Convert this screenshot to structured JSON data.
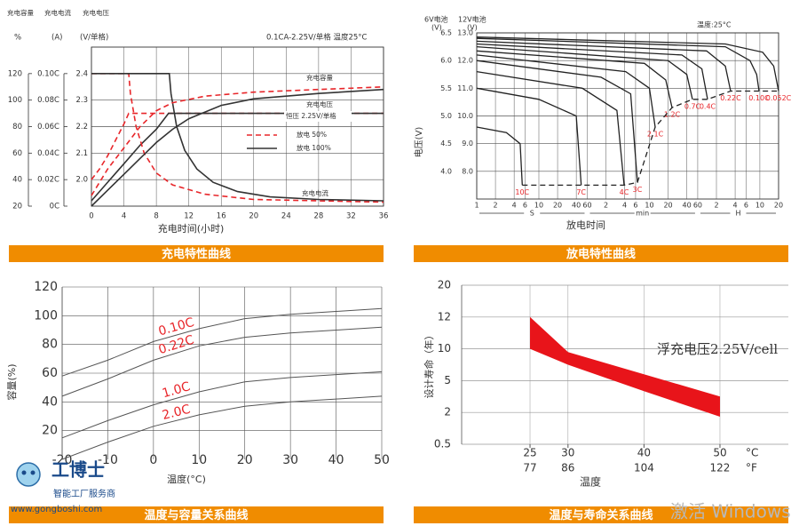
{
  "chart_data": [
    {
      "type": "line",
      "title": "充电特性曲线",
      "header_labels": [
        "充电容量",
        "充电电流",
        "充电电压"
      ],
      "note": "0.1CA-2.25V/单格  温度25°C",
      "xlabel": "充电时间(小时)",
      "ylabel": "(V/单格)",
      "y2label": "%",
      "y3label": "(A)",
      "xlim": [
        0,
        36
      ],
      "xticks": [
        0,
        4,
        8,
        12,
        16,
        20,
        24,
        28,
        32,
        36
      ],
      "ylim": [
        1.9,
        2.5
      ],
      "yticks": [
        {
          "value": 2,
          "label": "2.0"
        },
        2.1,
        2.2,
        2.3,
        2.4
      ],
      "y2lim": [
        20,
        140
      ],
      "y2ticks": [
        20,
        40,
        60,
        80,
        100,
        120
      ],
      "y3lim": [
        0,
        0.12
      ],
      "y3ticks": [
        {
          "value": 0,
          "label": "0C"
        },
        {
          "value": 0.02,
          "label": "0.02C"
        },
        {
          "value": 0.04,
          "label": "0.04C"
        },
        {
          "value": 0.06,
          "label": "0.06C"
        },
        {
          "value": 0.08,
          "label": "0.08C"
        },
        {
          "value": 0.1,
          "label": "0.10C"
        }
      ],
      "grid": true,
      "legend": [
        {
          "name": "放电 50%",
          "color": "#e8262a",
          "dash": true
        },
        {
          "name": "放电 100%",
          "color": "#333333",
          "dash": false
        }
      ],
      "curve_labels": [
        "充电容量",
        "充电电压",
        "恒压 2.25V/单格",
        "充电电流"
      ],
      "series": [
        {
          "axis": "y",
          "style": 0,
          "x": [
            0,
            1,
            2,
            3,
            4,
            4.6,
            36
          ],
          "values": [
            2.0,
            2.04,
            2.09,
            2.15,
            2.21,
            2.25,
            2.25
          ]
        },
        {
          "axis": "y",
          "style": 1,
          "x": [
            0,
            2,
            4,
            6,
            8,
            9.5,
            36
          ],
          "values": [
            1.92,
            1.99,
            2.06,
            2.13,
            2.19,
            2.25,
            2.25
          ]
        },
        {
          "axis": "y3",
          "style": 0,
          "x": [
            0,
            4.6,
            4.8,
            5.5,
            6.5,
            8,
            10,
            14,
            20,
            36
          ],
          "values": [
            0.1,
            0.1,
            0.085,
            0.06,
            0.04,
            0.025,
            0.016,
            0.009,
            0.005,
            0.003
          ]
        },
        {
          "axis": "y3",
          "style": 1,
          "x": [
            0,
            9.6,
            9.8,
            10.5,
            11.5,
            13,
            15,
            18,
            22,
            28,
            36
          ],
          "values": [
            0.1,
            0.1,
            0.085,
            0.06,
            0.042,
            0.028,
            0.018,
            0.011,
            0.007,
            0.005,
            0.004
          ]
        },
        {
          "axis": "y2",
          "style": 0,
          "x": [
            0,
            2,
            4,
            6,
            8,
            10,
            14,
            20,
            28,
            36
          ],
          "values": [
            28,
            48,
            64,
            80,
            92,
            98,
            103,
            106,
            108,
            110
          ]
        },
        {
          "axis": "y2",
          "style": 1,
          "x": [
            0,
            2,
            4,
            6,
            8,
            10,
            12,
            16,
            20,
            28,
            36
          ],
          "values": [
            20,
            32,
            44,
            56,
            68,
            78,
            86,
            96,
            101,
            105,
            108
          ]
        }
      ]
    },
    {
      "type": "line",
      "title": "放电特性曲线",
      "y_headers": [
        "6V电池",
        "12V电池"
      ],
      "y_unit": "(V)",
      "ylabel": "电压(V)",
      "xlabel": "放电时间",
      "note": "温度:25°C",
      "log_x": true,
      "xlim": [
        1,
        72000
      ],
      "xticks": [
        1,
        2,
        4,
        6,
        10,
        20,
        40,
        60,
        {
          "value": 120,
          "label": "2"
        },
        {
          "value": 240,
          "label": "4"
        },
        {
          "value": 360,
          "label": "6"
        },
        {
          "value": 600,
          "label": "10"
        },
        {
          "value": 1200,
          "label": "20"
        },
        {
          "value": 2400,
          "label": "40"
        },
        {
          "value": 3600,
          "label": "60"
        },
        {
          "value": 7200,
          "label": "2"
        },
        {
          "value": 14400,
          "label": "4"
        },
        {
          "value": 21600,
          "label": "6"
        },
        {
          "value": 36000,
          "label": "10"
        },
        {
          "value": 72000,
          "label": "20"
        }
      ],
      "x_units": [
        {
          "label": "S",
          "range": [
            1,
            60
          ]
        },
        {
          "label": "min",
          "range": [
            60,
            3600
          ]
        },
        {
          "label": "H",
          "range": [
            3600,
            72000
          ]
        }
      ],
      "ylim": [
        7,
        13
      ],
      "yticks": [
        {
          "value": 8,
          "label": "8.0"
        },
        {
          "value": 9,
          "label": "9.0"
        },
        {
          "value": 10,
          "label": "10.0"
        },
        {
          "value": 11,
          "label": "11.0"
        },
        {
          "value": 12,
          "label": "12.0"
        },
        {
          "value": 13,
          "label": "13.0"
        }
      ],
      "y2lim": [
        3.5,
        6.5
      ],
      "y2ticks": [
        {
          "value": 4,
          "label": "4.0"
        },
        4.5,
        {
          "value": 5,
          "label": "5.0"
        },
        5.5,
        {
          "value": 6,
          "label": "6.0"
        },
        6.5
      ],
      "grid": true,
      "line_color": "#222222",
      "label_color": "#e8262a",
      "end_line_dashed": true,
      "series": [
        {
          "name": "10C",
          "x": [
            1,
            3,
            5,
            5.4
          ],
          "values": [
            9.6,
            9.4,
            9.0,
            7.5
          ]
        },
        {
          "name": "7C",
          "x": [
            1,
            10,
            40,
            48
          ],
          "values": [
            11.0,
            10.6,
            10.0,
            7.5
          ]
        },
        {
          "name": "4C",
          "x": [
            1,
            50,
            180,
            235
          ],
          "values": [
            11.6,
            11.0,
            10.2,
            7.5
          ]
        },
        {
          "name": "3C",
          "x": [
            1,
            100,
            300,
            385
          ],
          "values": [
            12.0,
            11.4,
            10.8,
            7.6
          ]
        },
        {
          "name": "2.1C",
          "x": [
            1,
            250,
            600,
            744
          ],
          "values": [
            12.2,
            11.6,
            11.0,
            9.6
          ]
        },
        {
          "name": "1.2C",
          "x": [
            1,
            500,
            1100,
            1390
          ],
          "values": [
            12.35,
            11.9,
            11.3,
            10.3
          ]
        },
        {
          "name": "0.7C",
          "x": [
            1,
            1200,
            2400,
            2960
          ],
          "values": [
            12.5,
            12.0,
            11.5,
            10.6
          ]
        },
        {
          "name": "0.4C",
          "x": [
            1,
            2000,
            4200,
            5180
          ],
          "values": [
            12.6,
            12.2,
            11.7,
            10.6
          ]
        },
        {
          "name": "0.22C",
          "x": [
            1,
            5000,
            10000,
            12190
          ],
          "values": [
            12.7,
            12.35,
            11.8,
            10.9
          ]
        },
        {
          "name": "0.10C",
          "x": [
            1,
            10000,
            25000,
            32000,
            34900
          ],
          "values": [
            12.8,
            12.5,
            12.0,
            11.5,
            10.9
          ]
        },
        {
          "name": "0.052C",
          "x": [
            1,
            10000,
            40000,
            60000,
            72000
          ],
          "values": [
            12.85,
            12.6,
            12.3,
            11.8,
            10.9
          ]
        }
      ]
    },
    {
      "type": "line",
      "title": "温度与容量关系曲线",
      "xlabel": "温度(°C)",
      "ylabel": "容量(%)",
      "x": [
        -20,
        -10,
        0,
        10,
        20,
        30,
        40,
        50
      ],
      "xlim": [
        -20,
        50
      ],
      "xticks": [
        -20,
        -10,
        0,
        10,
        20,
        30,
        40,
        50
      ],
      "ylim": [
        0,
        120
      ],
      "yticks": [
        20,
        40,
        60,
        80,
        100,
        120
      ],
      "grid": true,
      "line_color": "#555555",
      "label_color": "#e8262a",
      "series": [
        {
          "name": "0.10C",
          "values": [
            58,
            69,
            82,
            91,
            98,
            101,
            103,
            105
          ]
        },
        {
          "name": "0.22C",
          "values": [
            44,
            56,
            69,
            79,
            85,
            88,
            90,
            92
          ]
        },
        {
          "name": "1.0C",
          "values": [
            15,
            27,
            38,
            47,
            54,
            57,
            59,
            61
          ]
        },
        {
          "name": "2.0C",
          "values": [
            0,
            12,
            23,
            31,
            37,
            40,
            42,
            44
          ]
        }
      ]
    },
    {
      "type": "band",
      "title": "温度与寿命关系曲线",
      "xlabel": "温度",
      "ylabel": "设计寿命（年）",
      "note": "浮充电压2.25V/cell",
      "x": [
        25,
        30,
        40,
        50
      ],
      "upper": [
        12,
        9.5,
        6,
        3.5
      ],
      "lower": [
        10,
        7.5,
        4,
        1.8
      ],
      "color": "#e8141a",
      "xlim": [
        16,
        59
      ],
      "xticks": [
        25,
        30,
        40,
        50
      ],
      "xunit": "°C",
      "x2lim": [
        60.8,
        138.2
      ],
      "x2ticks": [
        77,
        86,
        104,
        122
      ],
      "x2unit": "°F",
      "ylim": [
        0.5,
        20
      ],
      "yticks": [
        0.5,
        2,
        5,
        10,
        12,
        20
      ],
      "y_scale": "piecewise",
      "grid": true
    }
  ],
  "overlay": {
    "logo": {
      "name": "工博士",
      "tagline": "智能工厂服务商",
      "url": "www.gongboshi.com"
    },
    "watermark": "激活 Windows"
  }
}
